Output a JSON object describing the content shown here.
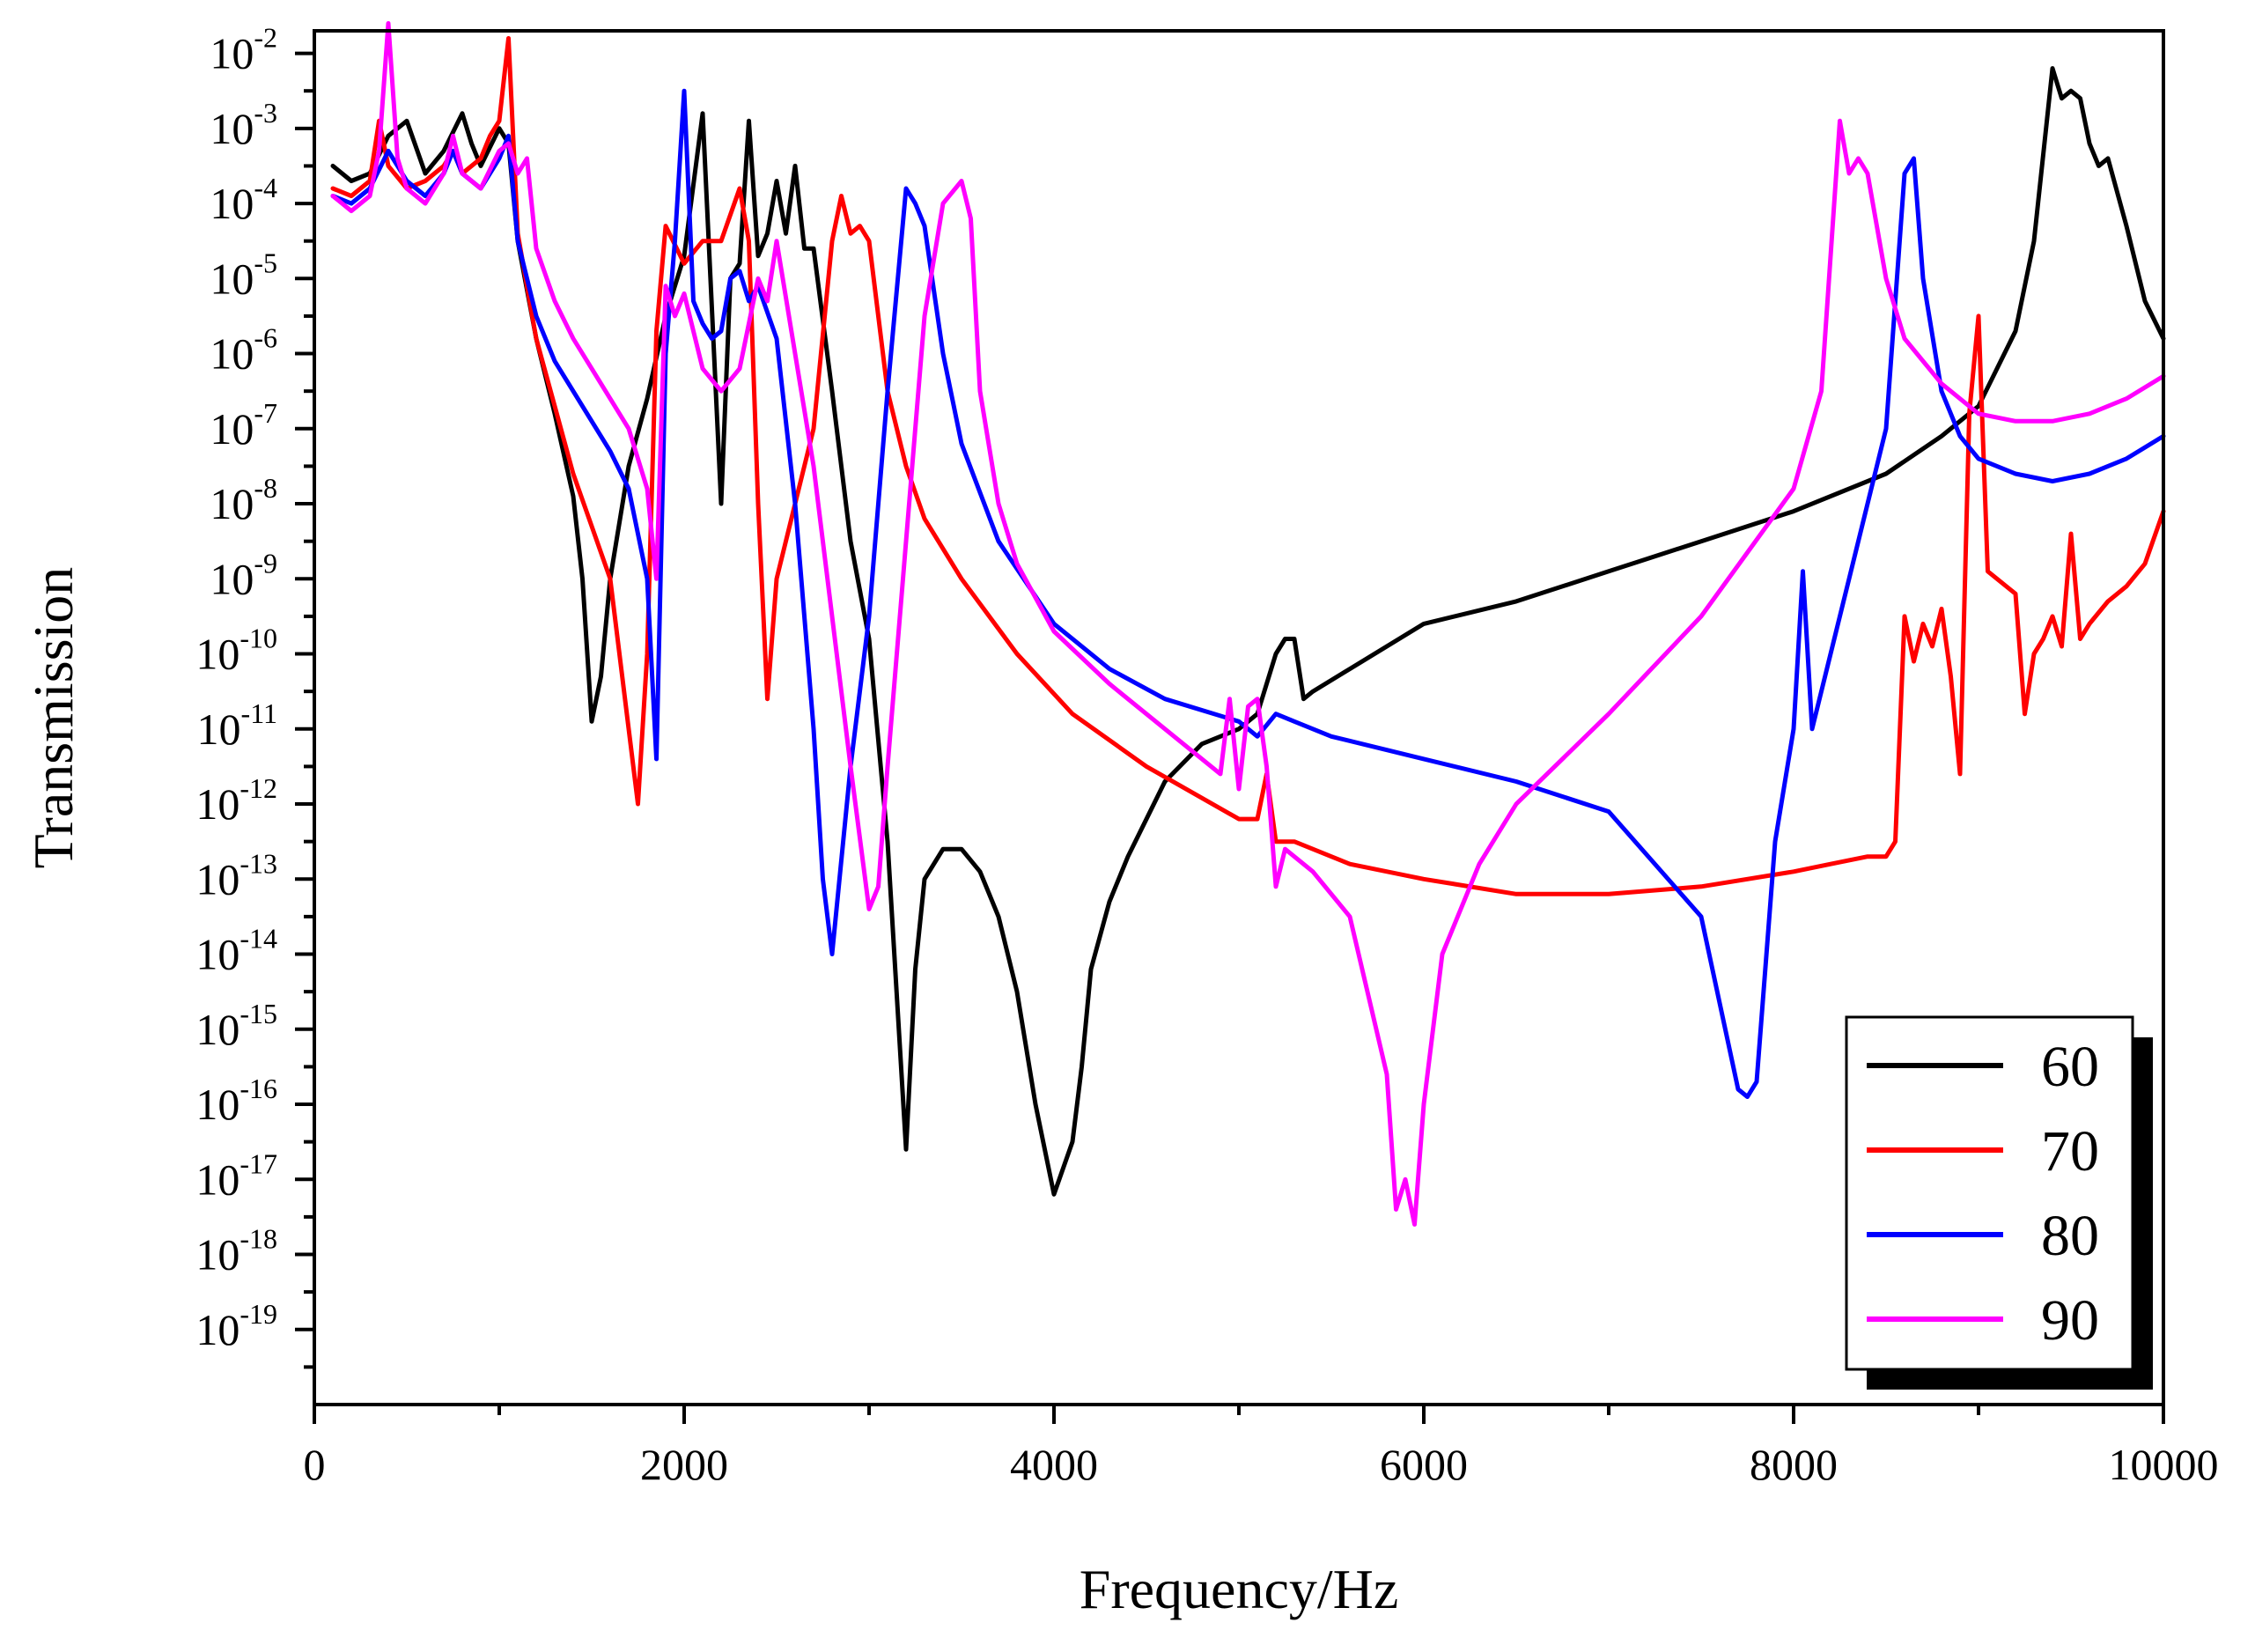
{
  "chart_data": {
    "type": "line",
    "title": "",
    "xlabel": "Frequency/Hz",
    "ylabel": "Transmission",
    "xlim": [
      0,
      10000
    ],
    "ylim_log10": [
      -20,
      -1.7
    ],
    "y_scale": "log",
    "x_ticks": [
      0,
      2000,
      4000,
      6000,
      8000,
      10000
    ],
    "x_tick_labels": [
      "0",
      "2000",
      "4000",
      "6000",
      "8000",
      "10000"
    ],
    "y_ticks_log10": [
      -19,
      -18,
      -17,
      -16,
      -15,
      -14,
      -13,
      -12,
      -11,
      -10,
      -9,
      -8,
      -7,
      -6,
      -5,
      -4,
      -3,
      -2
    ],
    "y_tick_base": "10",
    "y_tick_exponents": [
      "-19",
      "-18",
      "-17",
      "-16",
      "-15",
      "-14",
      "-13",
      "-12",
      "-11",
      "-10",
      "-9",
      "-8",
      "-7",
      "-6",
      "-5",
      "-4",
      "-3",
      "-2"
    ],
    "legend_position": "bottom-right",
    "series": [
      {
        "name": "60",
        "color": "#000000",
        "x": [
          100,
          200,
          300,
          400,
          500,
          600,
          700,
          800,
          850,
          900,
          1000,
          1050,
          1100,
          1200,
          1300,
          1400,
          1450,
          1500,
          1550,
          1600,
          1700,
          1800,
          1900,
          2000,
          2100,
          2200,
          2250,
          2300,
          2350,
          2400,
          2450,
          2500,
          2550,
          2600,
          2650,
          2700,
          2800,
          2900,
          3000,
          3100,
          3200,
          3250,
          3300,
          3400,
          3500,
          3600,
          3700,
          3800,
          3900,
          4000,
          4100,
          4150,
          4200,
          4300,
          4400,
          4500,
          4600,
          4800,
          5000,
          5100,
          5200,
          5250,
          5300,
          5350,
          5400,
          5600,
          5800,
          6000,
          6500,
          7000,
          7500,
          8000,
          8500,
          8800,
          9000,
          9200,
          9300,
          9400,
          9450,
          9500,
          9550,
          9600,
          9650,
          9700,
          9800,
          9900,
          10000
        ],
        "log10": [
          -3.5,
          -3.7,
          -3.6,
          -3.1,
          -2.9,
          -3.6,
          -3.3,
          -2.8,
          -3.2,
          -3.5,
          -3.0,
          -3.2,
          -4.5,
          -5.8,
          -6.8,
          -7.9,
          -9.0,
          -10.9,
          -10.3,
          -9.0,
          -7.5,
          -6.6,
          -5.5,
          -4.7,
          -2.8,
          -8.0,
          -5.0,
          -4.8,
          -2.9,
          -4.7,
          -4.4,
          -3.7,
          -4.4,
          -3.5,
          -4.6,
          -4.6,
          -6.5,
          -8.5,
          -9.8,
          -12.5,
          -16.6,
          -14.2,
          -13.0,
          -12.6,
          -12.6,
          -12.9,
          -13.5,
          -14.5,
          -16.0,
          -17.2,
          -16.5,
          -15.5,
          -14.2,
          -13.3,
          -12.7,
          -12.2,
          -11.7,
          -11.2,
          -11.0,
          -10.8,
          -10.0,
          -9.8,
          -9.8,
          -10.6,
          -10.5,
          -10.2,
          -9.9,
          -9.6,
          -9.3,
          -8.9,
          -8.5,
          -8.1,
          -7.6,
          -7.1,
          -6.7,
          -5.7,
          -4.5,
          -2.2,
          -2.6,
          -2.5,
          -2.6,
          -3.2,
          -3.5,
          -3.4,
          -4.3,
          -5.3,
          -5.8
        ]
      },
      {
        "name": "70",
        "color": "#ff0000",
        "x": [
          100,
          200,
          300,
          350,
          400,
          500,
          600,
          700,
          750,
          800,
          900,
          950,
          1000,
          1050,
          1100,
          1200,
          1300,
          1400,
          1500,
          1600,
          1700,
          1750,
          1800,
          1850,
          1900,
          2000,
          2100,
          2200,
          2300,
          2350,
          2400,
          2450,
          2500,
          2600,
          2700,
          2800,
          2850,
          2900,
          2950,
          3000,
          3100,
          3200,
          3300,
          3500,
          3800,
          4100,
          4500,
          5000,
          5100,
          5150,
          5200,
          5300,
          5400,
          5600,
          6000,
          6500,
          7000,
          7500,
          8000,
          8200,
          8400,
          8500,
          8550,
          8600,
          8650,
          8700,
          8750,
          8800,
          8850,
          8900,
          8950,
          9000,
          9050,
          9100,
          9200,
          9250,
          9300,
          9350,
          9400,
          9450,
          9500,
          9550,
          9600,
          9700,
          9800,
          9900,
          10000
        ],
        "log10": [
          -3.8,
          -3.9,
          -3.7,
          -2.9,
          -3.5,
          -3.8,
          -3.7,
          -3.5,
          -3.3,
          -3.6,
          -3.4,
          -3.1,
          -2.9,
          -1.8,
          -4.4,
          -5.8,
          -6.7,
          -7.6,
          -8.3,
          -9.0,
          -11.0,
          -12.0,
          -10.0,
          -5.7,
          -4.3,
          -4.8,
          -4.5,
          -4.5,
          -3.8,
          -4.5,
          -8.0,
          -10.6,
          -9.0,
          -8.0,
          -7.0,
          -4.5,
          -3.9,
          -4.4,
          -4.3,
          -4.5,
          -6.5,
          -7.5,
          -8.2,
          -9.0,
          -10.0,
          -10.8,
          -11.5,
          -12.2,
          -12.2,
          -11.6,
          -12.5,
          -12.5,
          -12.6,
          -12.8,
          -13.0,
          -13.2,
          -13.2,
          -13.1,
          -12.9,
          -12.8,
          -12.7,
          -12.7,
          -12.5,
          -9.5,
          -10.1,
          -9.6,
          -9.9,
          -9.4,
          -10.3,
          -11.6,
          -6.8,
          -5.5,
          -8.9,
          -9.0,
          -9.2,
          -10.8,
          -10.0,
          -9.8,
          -9.5,
          -9.9,
          -8.4,
          -9.8,
          -9.6,
          -9.3,
          -9.1,
          -8.8,
          -8.1
        ]
      },
      {
        "name": "80",
        "color": "#0000ff",
        "x": [
          100,
          200,
          300,
          400,
          500,
          600,
          700,
          750,
          800,
          900,
          1000,
          1050,
          1100,
          1200,
          1300,
          1400,
          1500,
          1600,
          1700,
          1800,
          1850,
          1900,
          1950,
          2000,
          2050,
          2100,
          2150,
          2200,
          2250,
          2300,
          2350,
          2400,
          2500,
          2600,
          2700,
          2750,
          2800,
          2900,
          3000,
          3100,
          3200,
          3250,
          3300,
          3400,
          3500,
          3700,
          4000,
          4300,
          4600,
          5000,
          5100,
          5200,
          5300,
          5500,
          6000,
          6500,
          7000,
          7500,
          7700,
          7750,
          7800,
          7900,
          8000,
          8050,
          8100,
          8200,
          8300,
          8400,
          8500,
          8600,
          8650,
          8700,
          8800,
          8900,
          9000,
          9200,
          9400,
          9600,
          9800,
          10000
        ],
        "log10": [
          -3.9,
          -4.0,
          -3.8,
          -3.3,
          -3.7,
          -3.9,
          -3.6,
          -3.3,
          -3.6,
          -3.8,
          -3.4,
          -3.1,
          -4.5,
          -5.5,
          -6.1,
          -6.5,
          -6.9,
          -7.3,
          -7.8,
          -9.0,
          -11.4,
          -6.0,
          -4.5,
          -2.5,
          -5.3,
          -5.6,
          -5.8,
          -5.7,
          -5.0,
          -4.9,
          -5.3,
          -5.1,
          -5.8,
          -8.0,
          -11.0,
          -13.0,
          -14.0,
          -11.5,
          -9.5,
          -6.5,
          -3.8,
          -4.0,
          -4.3,
          -6.0,
          -7.2,
          -8.5,
          -9.6,
          -10.2,
          -10.6,
          -10.9,
          -11.1,
          -10.8,
          -10.9,
          -11.1,
          -11.4,
          -11.7,
          -12.1,
          -13.5,
          -15.8,
          -15.9,
          -15.7,
          -12.5,
          -11.0,
          -8.9,
          -11.0,
          -10.0,
          -9.0,
          -8.0,
          -7.0,
          -3.6,
          -3.4,
          -5.0,
          -6.5,
          -7.1,
          -7.4,
          -7.6,
          -7.7,
          -7.6,
          -7.4,
          -7.1
        ]
      },
      {
        "name": "90",
        "color": "#ff00ff",
        "x": [
          100,
          200,
          300,
          350,
          400,
          450,
          500,
          600,
          700,
          750,
          800,
          900,
          1000,
          1050,
          1100,
          1150,
          1200,
          1300,
          1400,
          1500,
          1600,
          1700,
          1800,
          1850,
          1900,
          1950,
          2000,
          2100,
          2200,
          2300,
          2400,
          2450,
          2500,
          2600,
          2700,
          2800,
          2900,
          3000,
          3050,
          3100,
          3200,
          3300,
          3400,
          3500,
          3550,
          3600,
          3700,
          3800,
          4000,
          4300,
          4600,
          4900,
          4950,
          5000,
          5050,
          5100,
          5150,
          5200,
          5250,
          5400,
          5600,
          5800,
          5850,
          5900,
          5950,
          6000,
          6100,
          6300,
          6500,
          7000,
          7500,
          8000,
          8150,
          8250,
          8300,
          8350,
          8400,
          8500,
          8600,
          8800,
          9000,
          9200,
          9400,
          9600,
          9800,
          10000
        ],
        "log10": [
          -3.9,
          -4.1,
          -3.9,
          -3.3,
          -1.6,
          -3.4,
          -3.8,
          -4.0,
          -3.6,
          -3.1,
          -3.6,
          -3.8,
          -3.3,
          -3.2,
          -3.6,
          -3.4,
          -4.6,
          -5.3,
          -5.8,
          -6.2,
          -6.6,
          -7.0,
          -7.8,
          -9.0,
          -5.1,
          -5.5,
          -5.2,
          -6.2,
          -6.5,
          -6.2,
          -5.0,
          -5.3,
          -4.5,
          -6.0,
          -7.5,
          -9.5,
          -11.5,
          -13.4,
          -13.1,
          -11.5,
          -8.5,
          -5.5,
          -4.0,
          -3.7,
          -4.2,
          -6.5,
          -8.0,
          -8.8,
          -9.7,
          -10.4,
          -11.0,
          -11.6,
          -10.6,
          -11.8,
          -10.7,
          -10.6,
          -11.5,
          -13.1,
          -12.6,
          -12.9,
          -13.5,
          -15.6,
          -17.4,
          -17.0,
          -17.6,
          -16.0,
          -14.0,
          -12.8,
          -12.0,
          -10.8,
          -9.5,
          -7.8,
          -6.5,
          -2.9,
          -3.6,
          -3.4,
          -3.6,
          -5.0,
          -5.8,
          -6.4,
          -6.8,
          -6.9,
          -6.9,
          -6.8,
          -6.6,
          -6.3
        ]
      }
    ]
  }
}
